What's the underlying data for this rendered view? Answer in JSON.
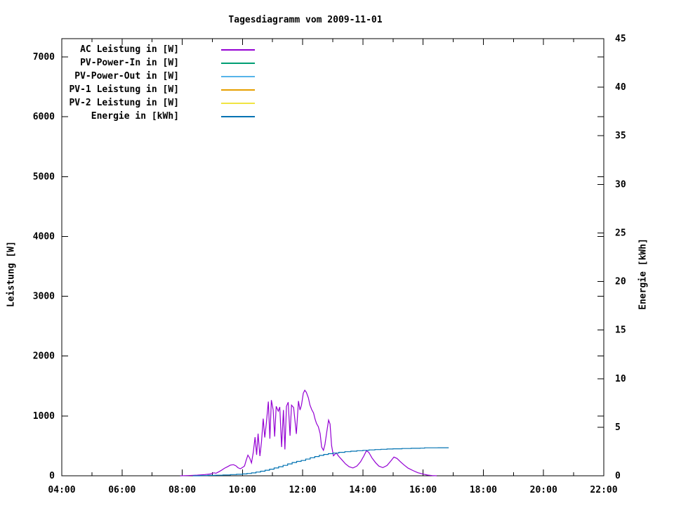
{
  "chart_data": {
    "type": "line",
    "title": "Tagesdiagramm vom 2009-11-01",
    "grid": false,
    "legend_position": "top-left-inside",
    "x_axis": {
      "label": "",
      "range_hours": [
        4,
        22
      ],
      "major_tick_every_hours": 2,
      "minor_tick_every_hours": 1,
      "tick_labels": [
        "04:00",
        "06:00",
        "08:00",
        "10:00",
        "12:00",
        "14:00",
        "16:00",
        "18:00",
        "20:00",
        "22:00"
      ]
    },
    "y_axis_left": {
      "label": "Leistung [W]",
      "range": [
        0,
        7306
      ],
      "ticks": [
        0,
        1000,
        2000,
        3000,
        4000,
        5000,
        6000,
        7000
      ]
    },
    "y_axis_right": {
      "label": "Energie [kWh]",
      "range": [
        0,
        45
      ],
      "ticks": [
        0,
        5,
        10,
        15,
        20,
        25,
        30,
        35,
        40,
        45
      ]
    },
    "series": [
      {
        "name": "AC Leistung in [W]",
        "color": "#9400d3",
        "axis": "left",
        "unit": "W",
        "step": false,
        "points": [
          [
            7.93,
            0
          ],
          [
            8.2,
            4
          ],
          [
            8.5,
            10
          ],
          [
            8.75,
            20
          ],
          [
            8.95,
            30
          ],
          [
            9.05,
            50
          ],
          [
            9.12,
            42
          ],
          [
            9.2,
            62
          ],
          [
            9.3,
            90
          ],
          [
            9.4,
            125
          ],
          [
            9.5,
            150
          ],
          [
            9.6,
            178
          ],
          [
            9.7,
            186
          ],
          [
            9.78,
            168
          ],
          [
            9.85,
            135
          ],
          [
            9.93,
            118
          ],
          [
            10.0,
            138
          ],
          [
            10.07,
            165
          ],
          [
            10.12,
            255
          ],
          [
            10.18,
            345
          ],
          [
            10.24,
            298
          ],
          [
            10.3,
            215
          ],
          [
            10.36,
            395
          ],
          [
            10.42,
            645
          ],
          [
            10.47,
            350
          ],
          [
            10.52,
            705
          ],
          [
            10.58,
            330
          ],
          [
            10.63,
            560
          ],
          [
            10.69,
            955
          ],
          [
            10.74,
            640
          ],
          [
            10.79,
            860
          ],
          [
            10.86,
            1240
          ],
          [
            10.91,
            620
          ],
          [
            10.96,
            1265
          ],
          [
            11.02,
            1100
          ],
          [
            11.07,
            655
          ],
          [
            11.12,
            1160
          ],
          [
            11.19,
            1080
          ],
          [
            11.24,
            1150
          ],
          [
            11.3,
            480
          ],
          [
            11.36,
            1100
          ],
          [
            11.41,
            440
          ],
          [
            11.46,
            1160
          ],
          [
            11.52,
            1230
          ],
          [
            11.58,
            670
          ],
          [
            11.63,
            1180
          ],
          [
            11.7,
            1140
          ],
          [
            11.79,
            700
          ],
          [
            11.86,
            1250
          ],
          [
            11.91,
            1100
          ],
          [
            11.96,
            1180
          ],
          [
            12.02,
            1380
          ],
          [
            12.07,
            1430
          ],
          [
            12.12,
            1395
          ],
          [
            12.19,
            1300
          ],
          [
            12.24,
            1185
          ],
          [
            12.3,
            1105
          ],
          [
            12.36,
            1050
          ],
          [
            12.41,
            950
          ],
          [
            12.46,
            875
          ],
          [
            12.52,
            820
          ],
          [
            12.58,
            705
          ],
          [
            12.63,
            480
          ],
          [
            12.69,
            425
          ],
          [
            12.74,
            520
          ],
          [
            12.79,
            700
          ],
          [
            12.86,
            930
          ],
          [
            12.91,
            865
          ],
          [
            12.96,
            505
          ],
          [
            13.02,
            335
          ],
          [
            13.07,
            360
          ],
          [
            13.12,
            380
          ],
          [
            13.19,
            330
          ],
          [
            13.3,
            268
          ],
          [
            13.42,
            200
          ],
          [
            13.54,
            152
          ],
          [
            13.67,
            130
          ],
          [
            13.8,
            162
          ],
          [
            13.92,
            232
          ],
          [
            14.03,
            330
          ],
          [
            14.12,
            420
          ],
          [
            14.2,
            388
          ],
          [
            14.3,
            298
          ],
          [
            14.42,
            220
          ],
          [
            14.53,
            162
          ],
          [
            14.66,
            136
          ],
          [
            14.8,
            172
          ],
          [
            14.92,
            242
          ],
          [
            15.03,
            312
          ],
          [
            15.13,
            290
          ],
          [
            15.25,
            232
          ],
          [
            15.37,
            180
          ],
          [
            15.5,
            128
          ],
          [
            15.66,
            88
          ],
          [
            15.82,
            52
          ],
          [
            16.0,
            28
          ],
          [
            16.15,
            12
          ],
          [
            16.3,
            4
          ],
          [
            16.45,
            0
          ]
        ]
      },
      {
        "name": "PV-Power-In in [W]",
        "color": "#009e73",
        "axis": "left",
        "unit": "W",
        "step": false,
        "points": [],
        "note": "curve not discernible in plot (at/near zero)"
      },
      {
        "name": "PV-Power-Out in [W]",
        "color": "#56b4e9",
        "axis": "left",
        "unit": "W",
        "step": false,
        "points": [],
        "note": "curve not discernible in plot (at/near zero)"
      },
      {
        "name": "PV-1 Leistung in [W]",
        "color": "#e69f00",
        "axis": "left",
        "unit": "W",
        "step": false,
        "points": [],
        "note": "curve not discernible in plot (at/near zero)"
      },
      {
        "name": "PV-2 Leistung in [W]",
        "color": "#f0e442",
        "axis": "left",
        "unit": "W",
        "step": false,
        "points": [],
        "note": "curve not discernible in plot (at/near zero)"
      },
      {
        "name": "Energie in [kWh]",
        "color": "#0072b2",
        "axis": "right",
        "unit": "kWh",
        "step": true,
        "points": [
          [
            8.35,
            0
          ],
          [
            8.6,
            0.02
          ],
          [
            8.85,
            0.04
          ],
          [
            9.1,
            0.06
          ],
          [
            9.35,
            0.09
          ],
          [
            9.6,
            0.12
          ],
          [
            9.8,
            0.15
          ],
          [
            10.0,
            0.19
          ],
          [
            10.15,
            0.24
          ],
          [
            10.3,
            0.3
          ],
          [
            10.45,
            0.38
          ],
          [
            10.6,
            0.47
          ],
          [
            10.75,
            0.57
          ],
          [
            10.9,
            0.68
          ],
          [
            11.05,
            0.8
          ],
          [
            11.2,
            0.93
          ],
          [
            11.35,
            1.07
          ],
          [
            11.5,
            1.22
          ],
          [
            11.65,
            1.37
          ],
          [
            11.8,
            1.48
          ],
          [
            11.95,
            1.58
          ],
          [
            12.1,
            1.72
          ],
          [
            12.25,
            1.86
          ],
          [
            12.4,
            1.98
          ],
          [
            12.55,
            2.1
          ],
          [
            12.7,
            2.2
          ],
          [
            12.85,
            2.28
          ],
          [
            13.0,
            2.34
          ],
          [
            13.2,
            2.42
          ],
          [
            13.4,
            2.48
          ],
          [
            13.6,
            2.53
          ],
          [
            13.8,
            2.58
          ],
          [
            14.0,
            2.62
          ],
          [
            14.2,
            2.66
          ],
          [
            14.4,
            2.7
          ],
          [
            14.6,
            2.73
          ],
          [
            14.8,
            2.76
          ],
          [
            15.0,
            2.78
          ],
          [
            15.3,
            2.81
          ],
          [
            15.6,
            2.83
          ],
          [
            15.9,
            2.84
          ],
          [
            16.05,
            2.88
          ],
          [
            16.5,
            2.89
          ],
          [
            16.85,
            2.89
          ]
        ]
      }
    ]
  }
}
